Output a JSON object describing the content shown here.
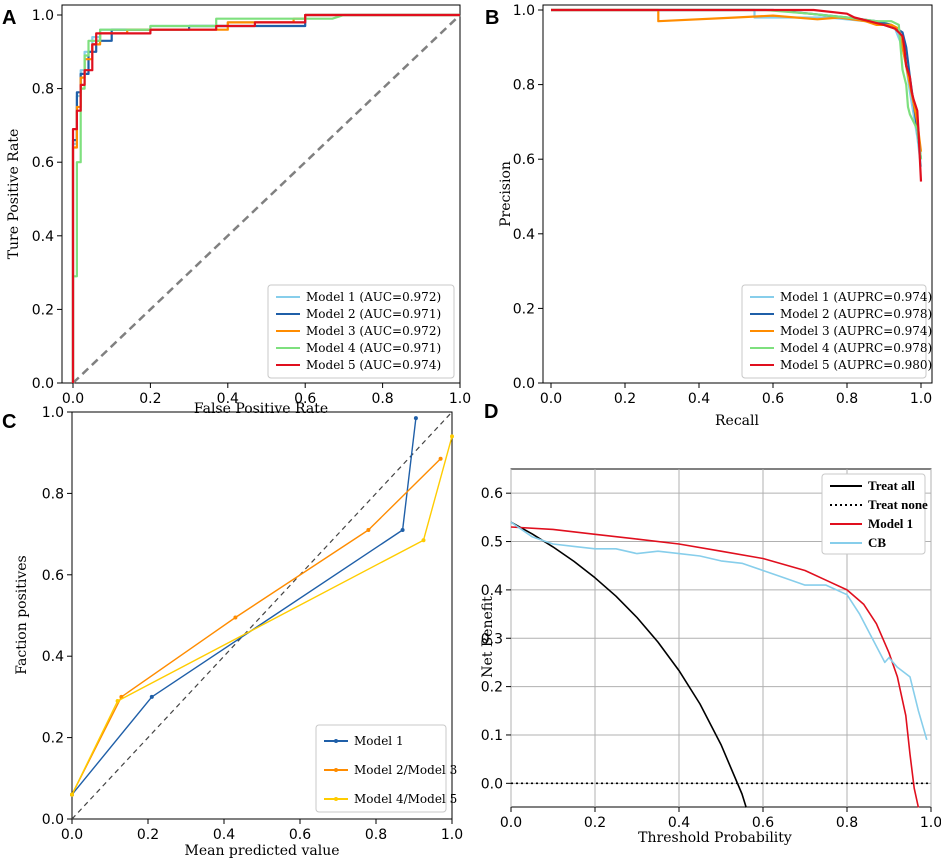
{
  "chart_data": [
    {
      "panel": "A",
      "type": "line",
      "xlabel": "False Positive Rate",
      "ylabel": "Ture Positive Rate",
      "xlim": [
        0,
        1
      ],
      "ylim": [
        0,
        1
      ],
      "xticks": [
        "0.0",
        "0.2",
        "0.4",
        "0.6",
        "0.8",
        "1.0"
      ],
      "yticks": [
        "0.0",
        "0.2",
        "0.4",
        "0.6",
        "0.8",
        "1.0"
      ],
      "legend_position": "bottom-right",
      "reference_line": {
        "name": "chance",
        "x": [
          0,
          1
        ],
        "y": [
          0,
          1
        ],
        "color": "#808080",
        "dash": true
      },
      "series": [
        {
          "name": "Model 1 (AUC=0.972)",
          "color": "#87ceeb",
          "x": [
            0,
            0,
            0.01,
            0.01,
            0.02,
            0.02,
            0.03,
            0.03,
            0.05,
            0.05,
            0.07,
            0.07,
            0.2,
            0.2,
            0.4,
            0.4,
            0.6,
            0.6,
            1
          ],
          "y": [
            0,
            0.65,
            0.65,
            0.78,
            0.78,
            0.85,
            0.85,
            0.9,
            0.9,
            0.94,
            0.94,
            0.96,
            0.96,
            0.97,
            0.97,
            0.98,
            0.98,
            1,
            1
          ]
        },
        {
          "name": "Model 2 (AUC=0.971)",
          "color": "#1f5fa8",
          "x": [
            0,
            0,
            0.01,
            0.01,
            0.02,
            0.02,
            0.04,
            0.04,
            0.06,
            0.06,
            0.1,
            0.1,
            0.3,
            0.3,
            0.6,
            0.6,
            1
          ],
          "y": [
            0,
            0.66,
            0.66,
            0.79,
            0.79,
            0.84,
            0.84,
            0.9,
            0.9,
            0.93,
            0.93,
            0.96,
            0.96,
            0.97,
            0.97,
            1,
            1
          ]
        },
        {
          "name": "Model 3 (AUC=0.972)",
          "color": "#ff8c00",
          "x": [
            0,
            0,
            0.01,
            0.01,
            0.02,
            0.02,
            0.03,
            0.03,
            0.05,
            0.05,
            0.07,
            0.07,
            0.14,
            0.14,
            0.4,
            0.4,
            0.57,
            0.57,
            0.6,
            0.6,
            1
          ],
          "y": [
            0,
            0.64,
            0.64,
            0.75,
            0.75,
            0.83,
            0.83,
            0.88,
            0.88,
            0.92,
            0.92,
            0.95,
            0.95,
            0.96,
            0.96,
            0.98,
            0.98,
            0.99,
            0.99,
            1,
            1
          ]
        },
        {
          "name": "Model 4 (AUC=0.971)",
          "color": "#7ee07e",
          "x": [
            0,
            0,
            0.01,
            0.01,
            0.02,
            0.02,
            0.03,
            0.03,
            0.04,
            0.04,
            0.07,
            0.07,
            0.2,
            0.2,
            0.37,
            0.37,
            0.67,
            0.67,
            0.7,
            1
          ],
          "y": [
            0,
            0.29,
            0.29,
            0.6,
            0.6,
            0.8,
            0.8,
            0.89,
            0.89,
            0.93,
            0.93,
            0.96,
            0.96,
            0.97,
            0.97,
            0.99,
            0.99,
            0.99,
            1,
            1
          ]
        },
        {
          "name": "Model 5 (AUC=0.974)",
          "color": "#e00f1e",
          "x": [
            0,
            0,
            0.01,
            0.01,
            0.02,
            0.02,
            0.03,
            0.03,
            0.05,
            0.05,
            0.06,
            0.06,
            0.2,
            0.2,
            0.37,
            0.37,
            0.47,
            0.47,
            0.6,
            0.6,
            1
          ],
          "y": [
            0,
            0.69,
            0.69,
            0.74,
            0.74,
            0.81,
            0.81,
            0.85,
            0.85,
            0.92,
            0.92,
            0.95,
            0.95,
            0.96,
            0.96,
            0.97,
            0.97,
            0.98,
            0.98,
            1,
            1
          ]
        }
      ]
    },
    {
      "panel": "B",
      "type": "line",
      "xlabel": "Recall",
      "ylabel": "Precision",
      "xlim": [
        0,
        1
      ],
      "ylim": [
        0,
        1
      ],
      "xticks": [
        "0.0",
        "0.2",
        "0.4",
        "0.6",
        "0.8",
        "1.0"
      ],
      "yticks": [
        "0.0",
        "0.2",
        "0.4",
        "0.6",
        "0.8",
        "1.0"
      ],
      "legend_position": "bottom-right",
      "series": [
        {
          "name": "Model 1 (AUPRC=0.974)",
          "color": "#87ceeb",
          "x": [
            0,
            0.55,
            0.55,
            0.75,
            0.85,
            0.9,
            0.93,
            0.95,
            0.96,
            0.97,
            0.98,
            0.99,
            1
          ],
          "y": [
            1,
            1,
            0.98,
            0.98,
            0.97,
            0.96,
            0.95,
            0.9,
            0.85,
            0.78,
            0.72,
            0.66,
            0.58
          ]
        },
        {
          "name": "Model 2 (AUPRC=0.978)",
          "color": "#1f5fa8",
          "x": [
            0,
            0.6,
            0.7,
            0.8,
            0.88,
            0.92,
            0.95,
            0.96,
            0.97,
            0.98,
            0.99,
            1
          ],
          "y": [
            1,
            1,
            0.99,
            0.98,
            0.97,
            0.96,
            0.94,
            0.9,
            0.82,
            0.75,
            0.68,
            0.6
          ]
        },
        {
          "name": "Model 3 (AUPRC=0.974)",
          "color": "#ff8c00",
          "x": [
            0,
            0.29,
            0.29,
            0.5,
            0.6,
            0.72,
            0.78,
            0.85,
            0.88,
            0.92,
            0.94,
            0.95,
            0.96,
            0.97,
            0.98,
            0.99,
            1
          ],
          "y": [
            1,
            1,
            0.97,
            0.98,
            0.985,
            0.975,
            0.98,
            0.97,
            0.96,
            0.96,
            0.95,
            0.9,
            0.85,
            0.8,
            0.75,
            0.7,
            0.62
          ]
        },
        {
          "name": "Model 4 (AUPRC=0.978)",
          "color": "#7ee07e",
          "x": [
            0,
            0.58,
            0.7,
            0.8,
            0.88,
            0.92,
            0.94,
            0.945,
            0.95,
            0.96,
            0.965,
            0.97,
            0.98,
            0.99,
            1
          ],
          "y": [
            1,
            1,
            0.99,
            0.98,
            0.97,
            0.97,
            0.96,
            0.9,
            0.84,
            0.8,
            0.74,
            0.72,
            0.7,
            0.68,
            0.6
          ]
        },
        {
          "name": "Model 5 (AUPRC=0.980)",
          "color": "#e00f1e",
          "x": [
            0,
            0.71,
            0.8,
            0.82,
            0.86,
            0.9,
            0.93,
            0.94,
            0.95,
            0.955,
            0.96,
            0.97,
            0.975,
            0.98,
            0.99,
            0.993,
            1
          ],
          "y": [
            1,
            1,
            0.99,
            0.98,
            0.97,
            0.96,
            0.95,
            0.94,
            0.93,
            0.9,
            0.85,
            0.82,
            0.78,
            0.76,
            0.73,
            0.68,
            0.54
          ]
        }
      ]
    },
    {
      "panel": "C",
      "type": "line",
      "xlabel": "Mean predicted value",
      "ylabel": "Faction positives",
      "xlim": [
        0,
        1
      ],
      "ylim": [
        0,
        1
      ],
      "xticks": [
        "0.0",
        "0.2",
        "0.4",
        "0.6",
        "0.8",
        "1.0"
      ],
      "yticks": [
        "0.0",
        "0.2",
        "0.4",
        "0.6",
        "0.8",
        "1.0"
      ],
      "legend_position": "bottom-right",
      "reference_line": {
        "name": "perfectly calibrated",
        "x": [
          0,
          1
        ],
        "y": [
          0,
          1
        ],
        "color": "#444444",
        "dash": true
      },
      "series": [
        {
          "name": "Model 1",
          "color": "#1f5fa8",
          "x": [
            0,
            0.21,
            0.87,
            0.905
          ],
          "y": [
            0.06,
            0.3,
            0.71,
            0.985
          ]
        },
        {
          "name": "Model 2/Model 3",
          "color": "#ff8c00",
          "x": [
            0,
            0.13,
            0.43,
            0.78,
            0.97
          ],
          "y": [
            0.06,
            0.3,
            0.495,
            0.71,
            0.885
          ]
        },
        {
          "name": "Model 4/Model 5",
          "color": "#ffcc00",
          "x": [
            0,
            0.12,
            0.925,
            1
          ],
          "y": [
            0.06,
            0.29,
            0.685,
            0.94
          ]
        }
      ]
    },
    {
      "panel": "D",
      "type": "line",
      "xlabel": "Threshold Probability",
      "ylabel": "Net Benefit",
      "xlim": [
        0,
        1
      ],
      "ylim": [
        -0.05,
        0.65
      ],
      "xticks": [
        "0.0",
        "0.2",
        "0.4",
        "0.6",
        "0.8",
        "1.0"
      ],
      "yticks": [
        "0.0",
        "0.1",
        "0.2",
        "0.3",
        "0.4",
        "0.5",
        "0.6"
      ],
      "grid": true,
      "legend_position": "top-right",
      "series": [
        {
          "name": "Treat all",
          "color": "#000000",
          "style": "solid",
          "x": [
            0,
            0.05,
            0.1,
            0.15,
            0.2,
            0.25,
            0.3,
            0.35,
            0.4,
            0.45,
            0.5,
            0.55,
            0.56
          ],
          "y": [
            0.54,
            0.516,
            0.489,
            0.459,
            0.425,
            0.387,
            0.343,
            0.292,
            0.233,
            0.164,
            0.08,
            -0.022,
            -0.05
          ]
        },
        {
          "name": "Treat none",
          "color": "#000000",
          "style": "dotted",
          "x": [
            0,
            1
          ],
          "y": [
            0,
            0
          ]
        },
        {
          "name": "Model 1",
          "color": "#e00f1e",
          "style": "solid",
          "x": [
            0,
            0.1,
            0.2,
            0.3,
            0.4,
            0.5,
            0.6,
            0.7,
            0.75,
            0.8,
            0.84,
            0.87,
            0.9,
            0.92,
            0.94,
            0.95,
            0.96,
            0.97
          ],
          "y": [
            0.53,
            0.525,
            0.515,
            0.505,
            0.495,
            0.48,
            0.465,
            0.44,
            0.42,
            0.4,
            0.37,
            0.33,
            0.27,
            0.22,
            0.14,
            0.06,
            -0.01,
            -0.05
          ]
        },
        {
          "name": "CB",
          "color": "#87ceeb",
          "style": "solid",
          "x": [
            0,
            0.05,
            0.1,
            0.15,
            0.2,
            0.25,
            0.3,
            0.35,
            0.4,
            0.45,
            0.5,
            0.55,
            0.6,
            0.65,
            0.7,
            0.75,
            0.8,
            0.83,
            0.86,
            0.89,
            0.9,
            0.92,
            0.95,
            0.97,
            0.99
          ],
          "y": [
            0.54,
            0.51,
            0.495,
            0.49,
            0.485,
            0.485,
            0.475,
            0.48,
            0.475,
            0.47,
            0.46,
            0.455,
            0.44,
            0.425,
            0.41,
            0.41,
            0.39,
            0.35,
            0.3,
            0.25,
            0.26,
            0.24,
            0.22,
            0.15,
            0.09
          ]
        }
      ]
    }
  ]
}
